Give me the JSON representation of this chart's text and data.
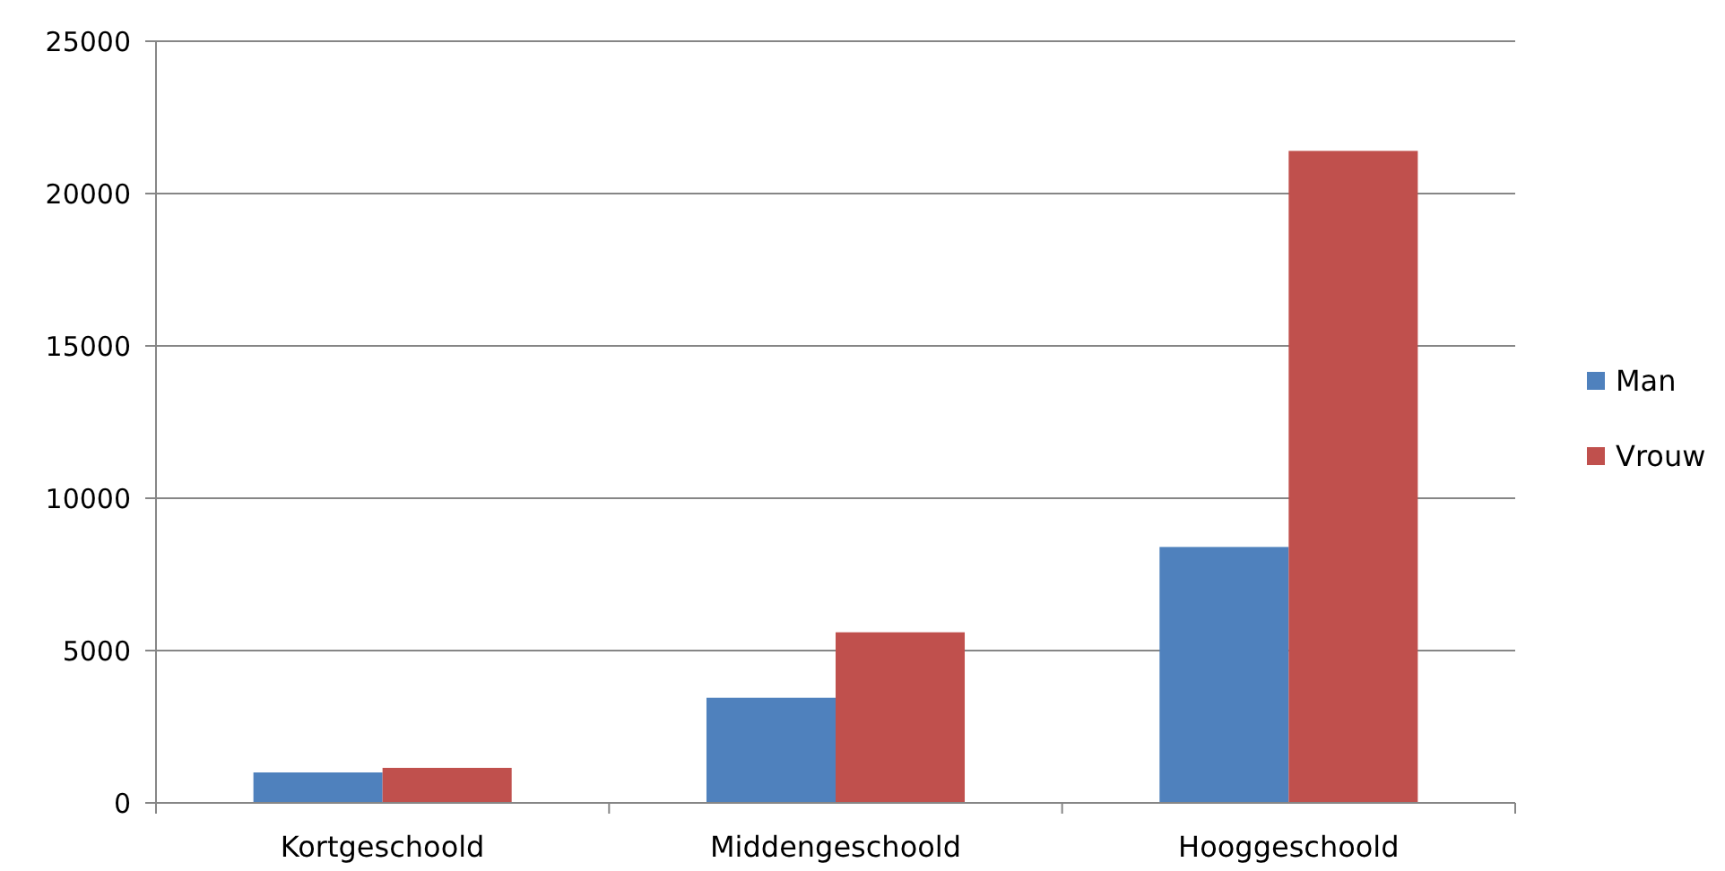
{
  "chart_data": {
    "type": "bar",
    "categories": [
      "Kortgeschoold",
      "Middengeschoold",
      "Hooggeschoold"
    ],
    "series": [
      {
        "name": "Man",
        "color": "#4f81bd",
        "values": [
          1000,
          3450,
          8400
        ]
      },
      {
        "name": "Vrouw",
        "color": "#c0504d",
        "values": [
          1150,
          5600,
          21400
        ]
      }
    ],
    "ylim": [
      0,
      25000
    ],
    "yticks": [
      0,
      5000,
      10000,
      15000,
      20000,
      25000
    ],
    "grid": "y",
    "legend": "right"
  }
}
